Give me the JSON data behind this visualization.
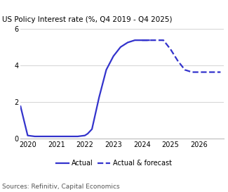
{
  "title": "US Policy Interest rate (%, Q4 2019 - Q4 2025)",
  "source": "Sources: Refinitiv, Capital Economics",
  "line_color": "#3333cc",
  "actual_x": [
    2019.75,
    2020.0,
    2020.25,
    2020.5,
    2020.75,
    2021.0,
    2021.25,
    2021.5,
    2021.75,
    2022.0,
    2022.1,
    2022.25,
    2022.5,
    2022.75,
    2023.0,
    2023.25,
    2023.5,
    2023.75,
    2024.0,
    2024.25
  ],
  "actual_y": [
    1.75,
    0.15,
    0.1,
    0.1,
    0.1,
    0.1,
    0.1,
    0.1,
    0.1,
    0.15,
    0.25,
    0.5,
    2.25,
    3.75,
    4.5,
    5.0,
    5.25,
    5.375,
    5.375,
    5.375
  ],
  "forecast_x": [
    2024.0,
    2024.25,
    2024.5,
    2024.75,
    2025.0,
    2025.25,
    2025.5,
    2025.75,
    2026.0,
    2026.25,
    2026.5,
    2026.75
  ],
  "forecast_y": [
    5.375,
    5.375,
    5.375,
    5.375,
    4.875,
    4.25,
    3.75,
    3.625,
    3.625,
    3.625,
    3.625,
    3.625
  ],
  "xlim": [
    2019.75,
    2026.85
  ],
  "ylim": [
    0,
    6
  ],
  "yticks": [
    0,
    2,
    4,
    6
  ],
  "xticks": [
    2020,
    2021,
    2022,
    2023,
    2024,
    2025,
    2026
  ],
  "xtick_labels": [
    "2020",
    "2021",
    "2022",
    "2023",
    "2024",
    "2025",
    "2026"
  ],
  "legend_actual": "Actual",
  "legend_forecast": "Actual & forecast",
  "title_fontsize": 7.5,
  "tick_fontsize": 7.0,
  "source_fontsize": 6.5,
  "legend_fontsize": 7.0
}
